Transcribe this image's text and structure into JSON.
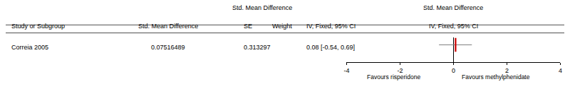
{
  "chart_data": {
    "type": "forest",
    "headers": [
      "Std. Mean Difference",
      "Std. Mean Difference"
    ],
    "columns": [
      "Study or Subgroup",
      "Std. Mean Difference",
      "SE",
      "Weight",
      "IV, Fixed, 95% CI",
      "IV, Fixed, 95% CI"
    ],
    "rows": [
      {
        "study": "Correia 2005",
        "smd": 0.07516489,
        "se": 0.313297,
        "ci_label": "0.08 [-0.54, 0.69]",
        "estimate": 0.08,
        "ci_low": -0.54,
        "ci_high": 0.69
      }
    ],
    "favours": [
      "Favours risperidone",
      "Favours methylphenidate"
    ],
    "color": "#cc0000",
    "ci_color": "#808080",
    "xlim": [
      -4,
      4
    ],
    "xticks": [
      -4,
      -2,
      0,
      2,
      4
    ],
    "grid": false
  }
}
